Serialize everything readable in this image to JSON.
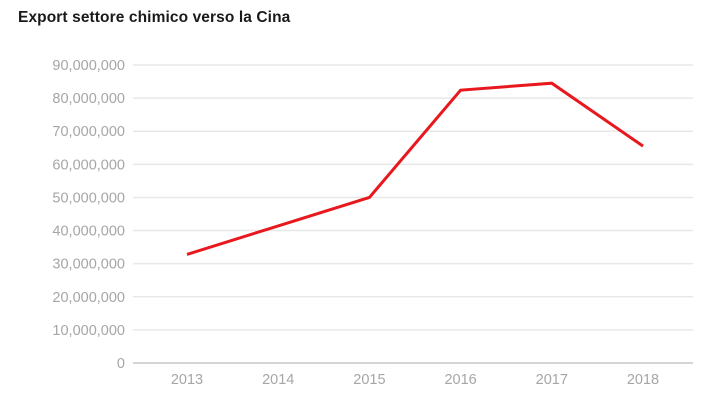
{
  "title": "Export settore chimico verso la Cina",
  "colors": {
    "line": "#e8191e",
    "title_text": "#1a1a1a",
    "axis_label": "#a6a6a6",
    "gridline": "#e8e8e8",
    "zero_line": "#d5d5d5",
    "background": "#ffffff"
  },
  "chart_data": {
    "type": "line",
    "title": "Export settore chimico verso la Cina",
    "categories": [
      "2013",
      "2014",
      "2015",
      "2016",
      "2017",
      "2018"
    ],
    "series": [
      {
        "name": "Export settore chimico verso la Cina",
        "values": [
          32800000,
          41400000,
          50000000,
          82400000,
          84500000,
          65500000
        ]
      }
    ],
    "xlabel": "",
    "ylabel": "",
    "ylim": [
      0,
      90000000
    ],
    "ytick_step": 10000000,
    "ytick_labels": [
      "0",
      "10,000,000",
      "20,000,000",
      "30,000,000",
      "40,000,000",
      "50,000,000",
      "60,000,000",
      "70,000,000",
      "80,000,000",
      "90,000,000"
    ],
    "grid": true,
    "legend": false
  }
}
